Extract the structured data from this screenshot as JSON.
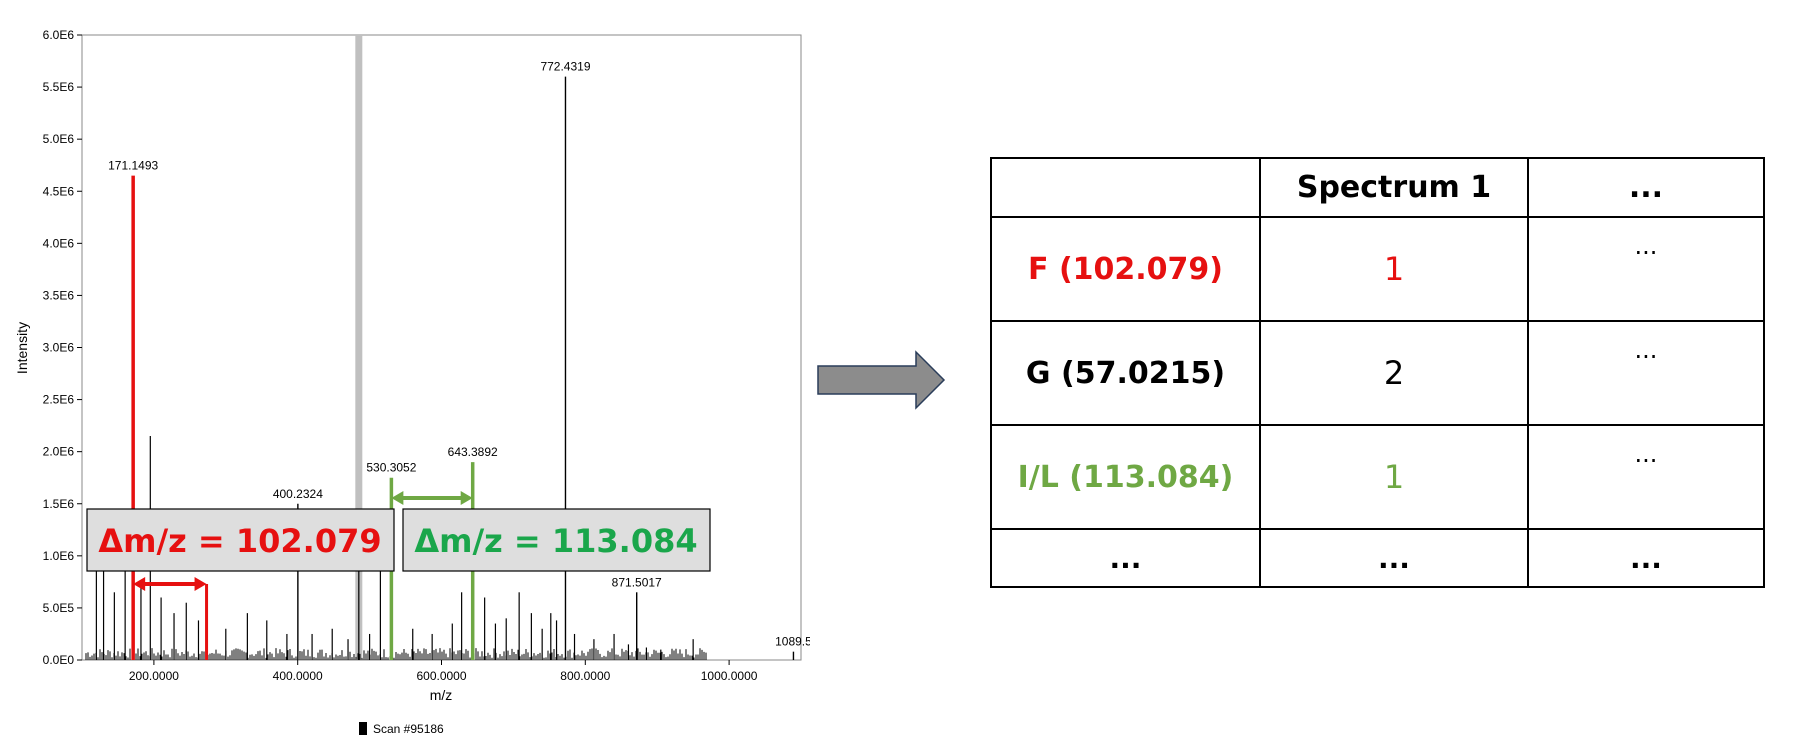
{
  "colors": {
    "red": "#e61010",
    "green": "#6fa844",
    "green_text": "#1aa64b",
    "peak": "#000000",
    "highlight_band": "#c0c0c0",
    "box_fill": "#dedede",
    "arrow_fill": "#8c8c8c",
    "arrow_stroke": "#2a3d5a"
  },
  "chart_data": {
    "type": "bar",
    "ylabel": "Intensity",
    "xlabel": "m/z",
    "xlim": [
      100,
      1100
    ],
    "ylim": [
      0,
      6000000
    ],
    "x_ticks": [
      "200.0000",
      "400.0000",
      "600.0000",
      "800.0000",
      "1000.0000"
    ],
    "x_tick_values": [
      200,
      400,
      600,
      800,
      1000
    ],
    "y_ticks": [
      "0.0E0",
      "5.0E5",
      "1.0E6",
      "1.5E6",
      "2.0E6",
      "2.5E6",
      "3.0E6",
      "3.5E6",
      "4.0E6",
      "4.5E6",
      "5.0E6",
      "5.5E6",
      "6.0E6"
    ],
    "y_tick_values": [
      0,
      500000,
      1000000,
      1500000,
      2000000,
      2500000,
      3000000,
      3500000,
      4000000,
      4500000,
      5000000,
      5500000,
      6000000
    ],
    "highlight_mz": 485,
    "labeled_peaks": [
      {
        "mz": 171.1493,
        "intensity": 4650000,
        "label": "171.1493",
        "color": "red"
      },
      {
        "mz": 772.4319,
        "intensity": 5600000,
        "label": "772.4319",
        "color": "peak"
      },
      {
        "mz": 530.3052,
        "intensity": 1750000,
        "label": "530.3052",
        "color": "green"
      },
      {
        "mz": 643.3892,
        "intensity": 1900000,
        "label": "643.3892",
        "color": "green"
      },
      {
        "mz": 400.2324,
        "intensity": 1500000,
        "label": "400.2324",
        "color": "peak"
      },
      {
        "mz": 871.5017,
        "intensity": 650000,
        "label": "871.5017",
        "color": "peak"
      },
      {
        "mz": 1089.5,
        "intensity": 80000,
        "label": "1089.5",
        "color": "peak"
      }
    ],
    "extra_peaks": [
      {
        "mz": 273.23,
        "intensity": 730000,
        "color": "red"
      },
      {
        "mz": 195,
        "intensity": 2150000,
        "color": "peak"
      },
      {
        "mz": 120,
        "intensity": 850000,
        "color": "peak"
      },
      {
        "mz": 130,
        "intensity": 1100000,
        "color": "peak"
      },
      {
        "mz": 145,
        "intensity": 650000,
        "color": "peak"
      },
      {
        "mz": 160,
        "intensity": 1300000,
        "color": "peak"
      },
      {
        "mz": 182,
        "intensity": 700000,
        "color": "peak"
      },
      {
        "mz": 210,
        "intensity": 600000,
        "color": "peak"
      },
      {
        "mz": 228,
        "intensity": 450000,
        "color": "peak"
      },
      {
        "mz": 245,
        "intensity": 550000,
        "color": "peak"
      },
      {
        "mz": 262,
        "intensity": 380000,
        "color": "peak"
      },
      {
        "mz": 300,
        "intensity": 300000,
        "color": "peak"
      },
      {
        "mz": 330,
        "intensity": 450000,
        "color": "peak"
      },
      {
        "mz": 357,
        "intensity": 380000,
        "color": "peak"
      },
      {
        "mz": 385,
        "intensity": 250000,
        "color": "peak"
      },
      {
        "mz": 420,
        "intensity": 250000,
        "color": "peak"
      },
      {
        "mz": 448,
        "intensity": 300000,
        "color": "peak"
      },
      {
        "mz": 470,
        "intensity": 200000,
        "color": "peak"
      },
      {
        "mz": 485,
        "intensity": 1100000,
        "color": "peak"
      },
      {
        "mz": 500,
        "intensity": 250000,
        "color": "peak"
      },
      {
        "mz": 515,
        "intensity": 1300000,
        "color": "peak"
      },
      {
        "mz": 560,
        "intensity": 300000,
        "color": "peak"
      },
      {
        "mz": 587,
        "intensity": 250000,
        "color": "peak"
      },
      {
        "mz": 615,
        "intensity": 350000,
        "color": "peak"
      },
      {
        "mz": 628,
        "intensity": 650000,
        "color": "peak"
      },
      {
        "mz": 660,
        "intensity": 600000,
        "color": "peak"
      },
      {
        "mz": 675,
        "intensity": 350000,
        "color": "peak"
      },
      {
        "mz": 690,
        "intensity": 400000,
        "color": "peak"
      },
      {
        "mz": 708,
        "intensity": 650000,
        "color": "peak"
      },
      {
        "mz": 725,
        "intensity": 450000,
        "color": "peak"
      },
      {
        "mz": 740,
        "intensity": 300000,
        "color": "peak"
      },
      {
        "mz": 752,
        "intensity": 450000,
        "color": "peak"
      },
      {
        "mz": 760,
        "intensity": 380000,
        "color": "peak"
      },
      {
        "mz": 785,
        "intensity": 250000,
        "color": "peak"
      },
      {
        "mz": 812,
        "intensity": 200000,
        "color": "peak"
      },
      {
        "mz": 840,
        "intensity": 250000,
        "color": "peak"
      },
      {
        "mz": 860,
        "intensity": 150000,
        "color": "peak"
      },
      {
        "mz": 885,
        "intensity": 120000,
        "color": "peak"
      },
      {
        "mz": 905,
        "intensity": 100000,
        "color": "peak"
      },
      {
        "mz": 950,
        "intensity": 200000,
        "color": "peak"
      }
    ]
  },
  "annotations": {
    "box_left": {
      "text": "Δm/z = 102.079",
      "color": "red",
      "from_mz": 171.1493,
      "to_mz": 273.23
    },
    "box_right": {
      "text": "Δm/z = 113.084",
      "color": "green_text",
      "from_mz": 530.3052,
      "to_mz": 643.3892
    }
  },
  "legend": {
    "label": "Scan #95186"
  },
  "table": {
    "header": {
      "blank": "",
      "col1": "Spectrum 1",
      "col2": "..."
    },
    "rows": [
      {
        "label": "F (102.079)",
        "count": "1",
        "more": "...",
        "color": "red"
      },
      {
        "label": "G (57.0215)",
        "count": "2",
        "more": "...",
        "color": "black"
      },
      {
        "label": "I/L (113.084)",
        "count": "1",
        "more": "...",
        "color": "green"
      }
    ],
    "last_row": {
      "c0": "...",
      "c1": "...",
      "c2": "..."
    }
  }
}
